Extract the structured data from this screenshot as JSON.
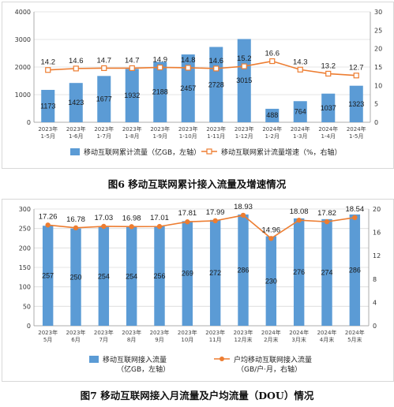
{
  "chart_data": [
    {
      "type": "bar",
      "title": "图6 移动互联网累计接入流量及增速情况",
      "categories": [
        [
          "2023年",
          "1-5月"
        ],
        [
          "2023年",
          "1-6月"
        ],
        [
          "2023年",
          "1-7月"
        ],
        [
          "2023年",
          "1-8月"
        ],
        [
          "2023年",
          "1-9月"
        ],
        [
          "2023年",
          "1-10月"
        ],
        [
          "2023年",
          "1-11月"
        ],
        [
          "2023年",
          "1-12月"
        ],
        [
          "2024年",
          "1-2月"
        ],
        [
          "2024年",
          "1-3月"
        ],
        [
          "2024年",
          "1-4月"
        ],
        [
          "2024年",
          "1-5月"
        ]
      ],
      "series": [
        {
          "name": "移动互联网累计流量（亿GB，左轴）",
          "kind": "bar",
          "axis": "left",
          "values": [
            1173,
            1423,
            1677,
            1932,
            2188,
            2457,
            2728,
            3015,
            488,
            764,
            1037,
            1323
          ]
        },
        {
          "name": "移动互联网累计流量增速（%，右轴）",
          "kind": "line",
          "axis": "right",
          "values": [
            14.2,
            14.6,
            14.7,
            14.7,
            14.9,
            14.8,
            14.6,
            15.2,
            16.6,
            14.3,
            13.2,
            12.7
          ]
        }
      ],
      "ylim_left": [
        0,
        4000
      ],
      "yticks_left": [
        0,
        1000,
        2000,
        3000,
        4000
      ],
      "ylim_right": [
        0,
        30
      ],
      "yticks_right": [
        0,
        5,
        10,
        15,
        20,
        25,
        30
      ],
      "grid": true,
      "legend_placement": "bottom",
      "colors": {
        "bar": "#5b9bd5",
        "line": "#ed7d31"
      }
    },
    {
      "type": "bar",
      "title": "图7 移动互联网接入月流量及户均流量（DOU）情况",
      "categories": [
        [
          "2023年",
          "5月"
        ],
        [
          "2023年",
          "6月"
        ],
        [
          "2023年",
          "7月"
        ],
        [
          "2023年",
          "8月"
        ],
        [
          "2023年",
          "9月"
        ],
        [
          "2023年",
          "10月"
        ],
        [
          "2023年",
          "11月"
        ],
        [
          "2023年",
          "12月末"
        ],
        [
          "2024年",
          "2月末"
        ],
        [
          "2024年",
          "3月末"
        ],
        [
          "2024年",
          "4月末"
        ],
        [
          "2024年",
          "5月末"
        ]
      ],
      "series": [
        {
          "name": "移动互联网接入流量",
          "name_line2": "（亿GB，左轴）",
          "kind": "bar",
          "axis": "left",
          "values": [
            257,
            250,
            254,
            254,
            256,
            269,
            272,
            286,
            230,
            276,
            274,
            286
          ]
        },
        {
          "name": "户均移动互联网接入流量",
          "name_line2": "（GB/户·月，右轴）",
          "kind": "line",
          "axis": "right",
          "values": [
            17.26,
            16.78,
            17.03,
            16.98,
            17.01,
            17.81,
            17.99,
            18.93,
            14.96,
            18.08,
            17.82,
            18.54
          ],
          "labels": [
            "17.26",
            "16.78",
            "17.03",
            "16.98",
            "17.01",
            "17.81",
            "17.99",
            "18.93",
            "14.96",
            "18.08",
            "17.82",
            "18.54"
          ]
        }
      ],
      "ylim_left": [
        0,
        300
      ],
      "yticks_left": [
        0,
        50,
        100,
        150,
        200,
        250,
        300
      ],
      "ylim_right": [
        0,
        20
      ],
      "yticks_right": [
        0,
        4,
        8,
        12,
        16,
        20
      ],
      "grid": true,
      "legend_placement": "bottom",
      "colors": {
        "bar": "#5b9bd5",
        "line": "#ed7d31"
      }
    }
  ]
}
